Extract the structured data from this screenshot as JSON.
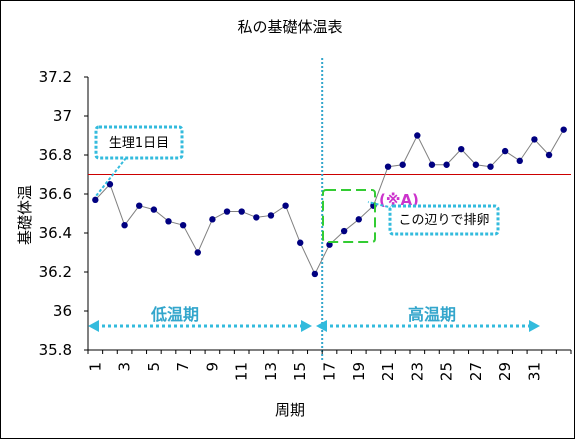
{
  "chart_data": {
    "type": "line",
    "title": "私の基礎体温表",
    "xlabel": "周期",
    "ylabel": "基礎体温",
    "ylim": [
      35.8,
      37.2
    ],
    "yticks": [
      "37.2",
      "37",
      "36.8",
      "36.6",
      "36.4",
      "36.2",
      "36",
      "35.8"
    ],
    "xticks": [
      "1",
      "3",
      "5",
      "7",
      "9",
      "11",
      "13",
      "15",
      "17",
      "19",
      "21",
      "23",
      "25",
      "27",
      "29",
      "31"
    ],
    "x": [
      1,
      2,
      3,
      4,
      5,
      6,
      7,
      8,
      9,
      10,
      11,
      12,
      13,
      14,
      15,
      16,
      17,
      18,
      19,
      20,
      21,
      22,
      23,
      24,
      25,
      26,
      27,
      28,
      29,
      30,
      31,
      32,
      33
    ],
    "values": [
      36.57,
      36.65,
      36.44,
      36.54,
      36.52,
      36.46,
      36.44,
      36.3,
      36.47,
      36.51,
      36.51,
      36.48,
      36.49,
      36.54,
      36.35,
      36.19,
      36.34,
      36.41,
      36.47,
      36.54,
      36.74,
      36.75,
      36.9,
      36.75,
      36.75,
      36.83,
      36.75,
      36.74,
      36.82,
      36.77,
      36.88,
      36.8,
      36.93
    ],
    "reference_line": 36.7,
    "divider_after_day": 16,
    "grid": false,
    "colors": {
      "line": "#808080",
      "marker": "#000080",
      "reference": "#cc0000",
      "divider": "#33a6cc",
      "callout": "#33bbdd",
      "highlight": "#33cc33",
      "mark": "#cc33cc"
    }
  },
  "annotations": {
    "period_start": "生理1日目",
    "ovulation": "この辺りで排卵",
    "mark": "(※A)",
    "low_phase": "低温期",
    "high_phase": "高温期"
  }
}
